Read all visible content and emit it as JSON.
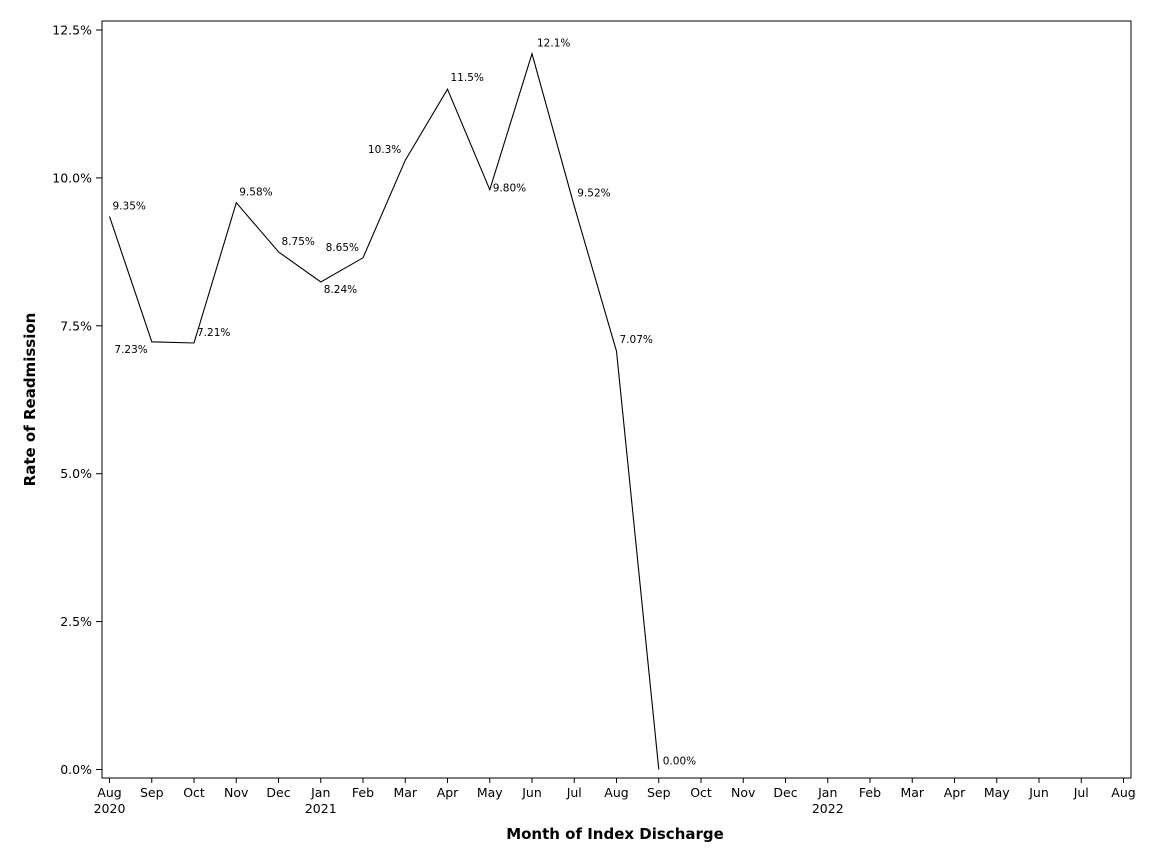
{
  "chart_data": {
    "type": "line",
    "xlabel": "Month of Index Discharge",
    "ylabel": "Rate of Readmission",
    "ylim": [
      0,
      12.5
    ],
    "yticks": [
      {
        "value": 0,
        "label": "0.0%"
      },
      {
        "value": 2.5,
        "label": "2.5%"
      },
      {
        "value": 5,
        "label": "5.0%"
      },
      {
        "value": 7.5,
        "label": "7.5%"
      },
      {
        "value": 10,
        "label": "10.0%"
      },
      {
        "value": 12.5,
        "label": "12.5%"
      }
    ],
    "x_ticks": [
      {
        "month": "Aug",
        "year": "2020"
      },
      {
        "month": "Sep",
        "year": ""
      },
      {
        "month": "Oct",
        "year": ""
      },
      {
        "month": "Nov",
        "year": ""
      },
      {
        "month": "Dec",
        "year": ""
      },
      {
        "month": "Jan",
        "year": "2021"
      },
      {
        "month": "Feb",
        "year": ""
      },
      {
        "month": "Mar",
        "year": ""
      },
      {
        "month": "Apr",
        "year": ""
      },
      {
        "month": "May",
        "year": ""
      },
      {
        "month": "Jun",
        "year": ""
      },
      {
        "month": "Jul",
        "year": ""
      },
      {
        "month": "Aug",
        "year": ""
      },
      {
        "month": "Sep",
        "year": ""
      },
      {
        "month": "Oct",
        "year": ""
      },
      {
        "month": "Nov",
        "year": ""
      },
      {
        "month": "Dec",
        "year": ""
      },
      {
        "month": "Jan",
        "year": "2022"
      },
      {
        "month": "Feb",
        "year": ""
      },
      {
        "month": "Mar",
        "year": ""
      },
      {
        "month": "Apr",
        "year": ""
      },
      {
        "month": "May",
        "year": ""
      },
      {
        "month": "Jun",
        "year": ""
      },
      {
        "month": "Jul",
        "year": ""
      },
      {
        "month": "Aug",
        "year": ""
      }
    ],
    "series": [
      {
        "points": [
          {
            "x": "2020-08",
            "y": 9.35,
            "label": "9.35%"
          },
          {
            "x": "2020-09",
            "y": 7.23,
            "label": "7.23%"
          },
          {
            "x": "2020-10",
            "y": 7.21,
            "label": "7.21%"
          },
          {
            "x": "2020-11",
            "y": 9.58,
            "label": "9.58%"
          },
          {
            "x": "2020-12",
            "y": 8.75,
            "label": "8.75%"
          },
          {
            "x": "2021-01",
            "y": 8.24,
            "label": "8.24%"
          },
          {
            "x": "2021-02",
            "y": 8.65,
            "label": "8.65%"
          },
          {
            "x": "2021-03",
            "y": 10.3,
            "label": "10.3%"
          },
          {
            "x": "2021-04",
            "y": 11.5,
            "label": "11.5%"
          },
          {
            "x": "2021-05",
            "y": 9.8,
            "label": "9.80%"
          },
          {
            "x": "2021-06",
            "y": 12.1,
            "label": "12.1%"
          },
          {
            "x": "2021-07",
            "y": 9.52,
            "label": "9.52%"
          },
          {
            "x": "2021-08",
            "y": 7.07,
            "label": "7.07%"
          },
          {
            "x": "2021-09",
            "y": 0.0,
            "label": "0.00%"
          }
        ]
      }
    ],
    "grid": false,
    "legend": "none",
    "line_color": "#000000"
  }
}
